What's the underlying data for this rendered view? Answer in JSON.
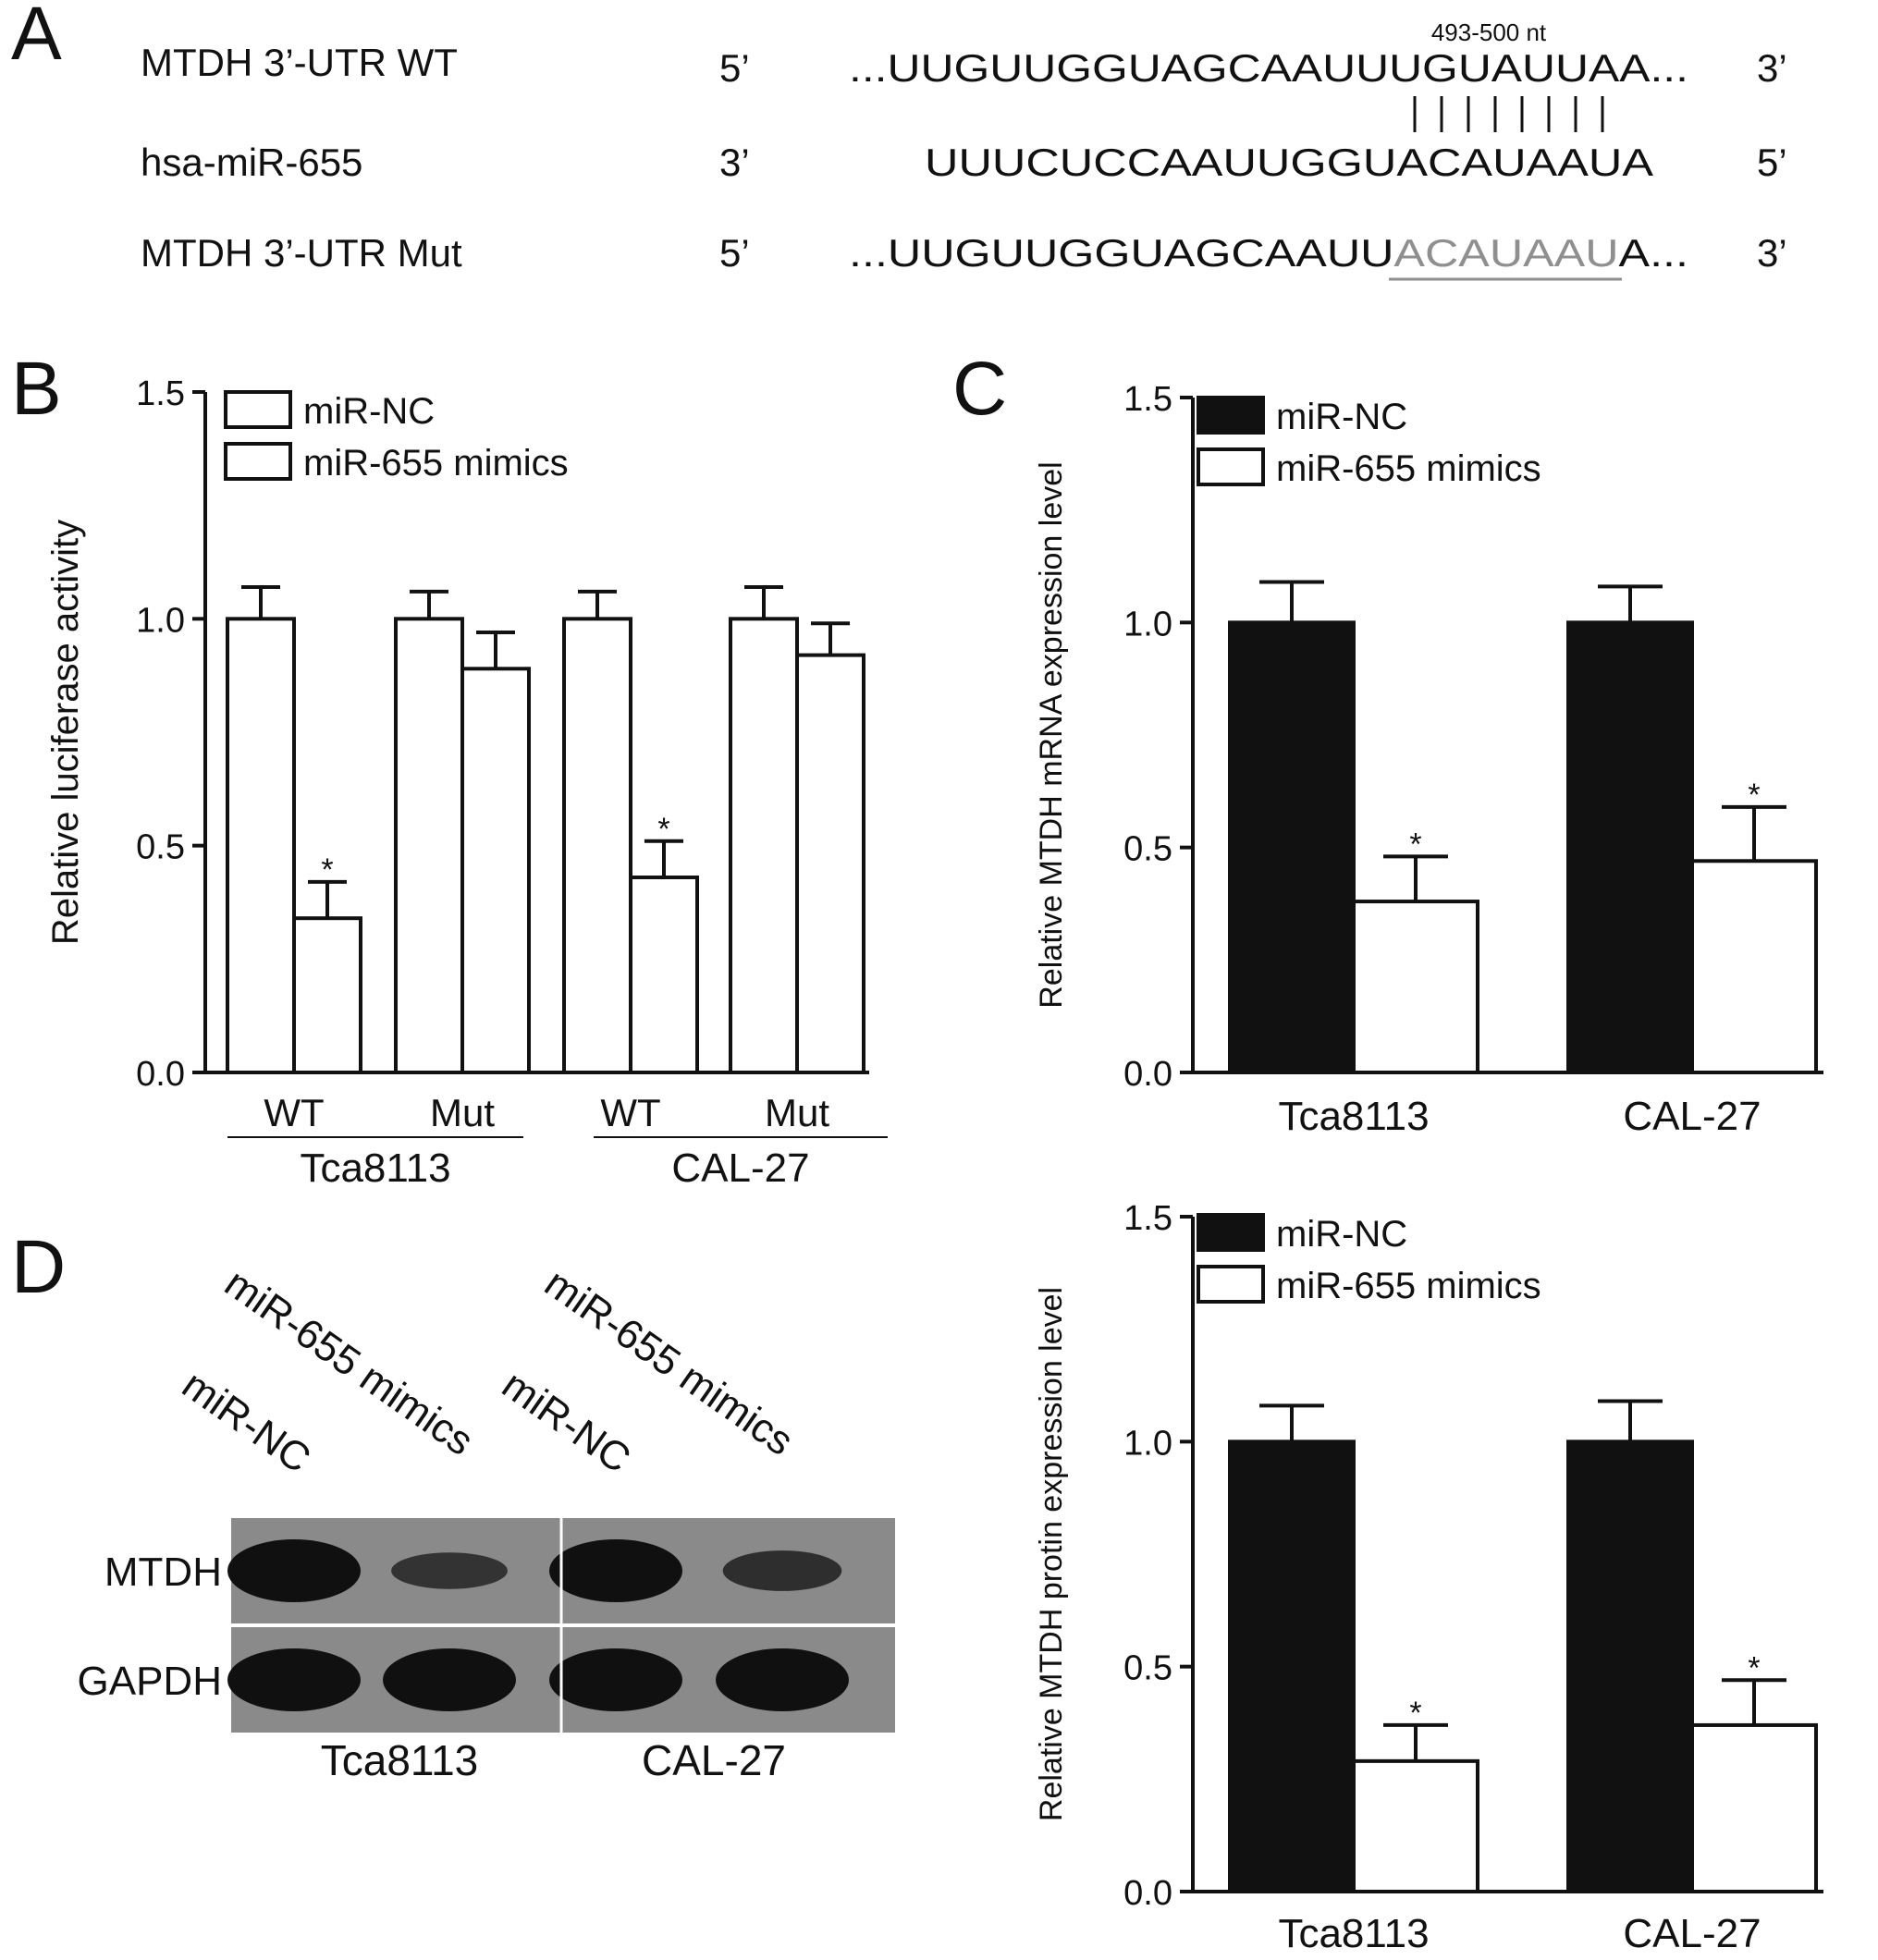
{
  "panels": {
    "A": {
      "letter": "A",
      "site_label": "493-500 nt",
      "rows": [
        {
          "name": "MTDH 3’-UTR WT",
          "end_left": "5’",
          "seq_prefix": "...UUGUUGGUAGCAAUUU",
          "seq_highlight": "",
          "seq_suffix": "GUAUUAA...",
          "end_right": "3’"
        },
        {
          "name": "hsa-miR-655",
          "end_left": "3’",
          "seq_prefix": "UUUCUCCAAUUGGUACAUAAUA",
          "seq_highlight": "",
          "seq_suffix": "",
          "end_right": "5’"
        },
        {
          "name": "MTDH 3’-UTR Mut",
          "end_left": "5’",
          "seq_prefix": "...UUGUUGGUAGCAAUU",
          "seq_highlight": "ACAUAAU",
          "seq_suffix": "A...",
          "end_right": "3’"
        }
      ],
      "pairing_marks": 8
    },
    "B": {
      "letter": "B"
    },
    "C": {
      "letter": "C"
    },
    "D": {
      "letter": "D",
      "lane_labels": [
        "miR-NC",
        "miR-655 mimics",
        "miR-NC",
        "miR-655 mimics"
      ],
      "row_labels": [
        "MTDH",
        "GAPDH"
      ],
      "group_labels": [
        "Tca8113",
        "CAL-27"
      ],
      "band_intensity": {
        "MTDH": [
          1.0,
          0.35,
          1.0,
          0.45
        ],
        "GAPDH": [
          1.0,
          1.0,
          1.0,
          1.0
        ]
      },
      "colors": {
        "blot_background": "#8a8a8a",
        "band": "#101010"
      }
    }
  },
  "chart_data": [
    {
      "id": "B",
      "type": "bar",
      "ylabel": "Relative luciferase activity",
      "ylim": [
        0,
        1.5
      ],
      "yticks": [
        "0.0",
        "0.5",
        "1.0",
        "1.5"
      ],
      "categories": [
        "WT",
        "Mut",
        "WT",
        "Mut"
      ],
      "groups": [
        {
          "label": "Tca8113",
          "categories": [
            0,
            1
          ]
        },
        {
          "label": "CAL-27",
          "categories": [
            2,
            3
          ]
        }
      ],
      "series": [
        {
          "name": "miR-NC",
          "fill": "#ffffff",
          "values": [
            1.0,
            1.0,
            1.0,
            1.0
          ],
          "errors": [
            0.07,
            0.06,
            0.06,
            0.07
          ]
        },
        {
          "name": "miR-655 mimics",
          "fill": "#ffffff",
          "values": [
            0.34,
            0.89,
            0.43,
            0.92
          ],
          "errors": [
            0.08,
            0.08,
            0.08,
            0.07
          ]
        }
      ],
      "significance": [
        {
          "series": 1,
          "category": 0,
          "label": "*"
        },
        {
          "series": 1,
          "category": 2,
          "label": "*"
        }
      ],
      "legend": "top-left",
      "grid": false
    },
    {
      "id": "C-top",
      "type": "bar",
      "ylabel": "Relative MTDH mRNA expression level",
      "ylim": [
        0,
        1.5
      ],
      "yticks": [
        "0.0",
        "0.5",
        "1.0",
        "1.5"
      ],
      "categories": [
        "Tca8113",
        "CAL-27"
      ],
      "series": [
        {
          "name": "miR-NC",
          "fill": "#111111",
          "values": [
            1.0,
            1.0
          ],
          "errors": [
            0.09,
            0.08
          ]
        },
        {
          "name": "miR-655 mimics",
          "fill": "#ffffff",
          "values": [
            0.38,
            0.47
          ],
          "errors": [
            0.1,
            0.12
          ]
        }
      ],
      "significance": [
        {
          "series": 1,
          "category": 0,
          "label": "*"
        },
        {
          "series": 1,
          "category": 1,
          "label": "*"
        }
      ],
      "legend": "top-left",
      "grid": false
    },
    {
      "id": "C-bottom",
      "type": "bar",
      "ylabel": "Relative MTDH protin expression level",
      "ylim": [
        0,
        1.5
      ],
      "yticks": [
        "0.0",
        "0.5",
        "1.0",
        "1.5"
      ],
      "categories": [
        "Tca8113",
        "CAL-27"
      ],
      "series": [
        {
          "name": "miR-NC",
          "fill": "#111111",
          "values": [
            1.0,
            1.0
          ],
          "errors": [
            0.08,
            0.09
          ]
        },
        {
          "name": "miR-655 mimics",
          "fill": "#ffffff",
          "values": [
            0.29,
            0.37
          ],
          "errors": [
            0.08,
            0.1
          ]
        }
      ],
      "significance": [
        {
          "series": 1,
          "category": 0,
          "label": "*"
        },
        {
          "series": 1,
          "category": 1,
          "label": "*"
        }
      ],
      "legend": "top-left",
      "grid": false
    }
  ]
}
